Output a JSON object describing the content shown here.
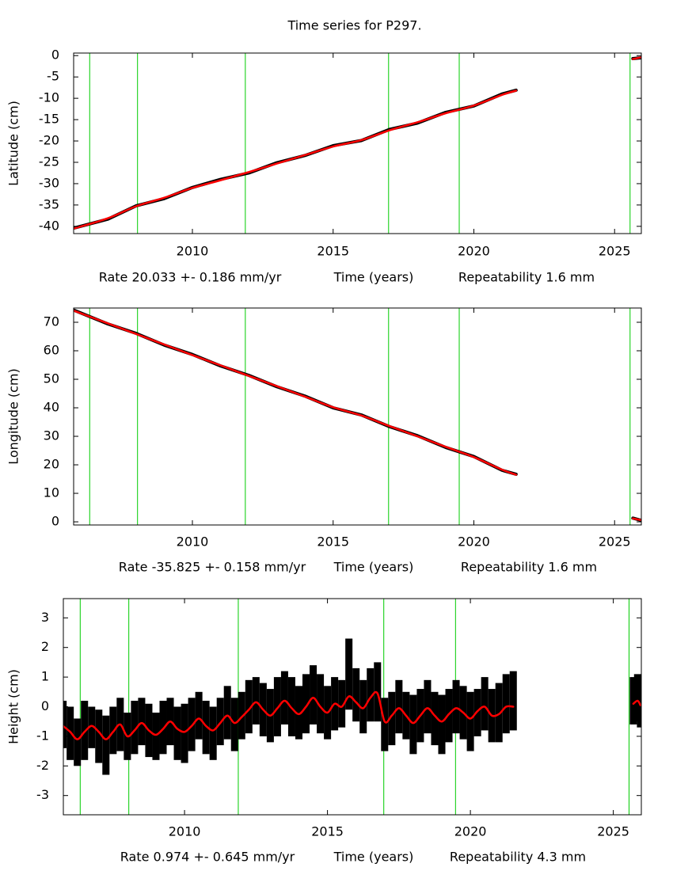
{
  "title": "Time series for P297.",
  "chart_data": [
    {
      "type": "line",
      "ylabel": "Latitude (cm)",
      "xlabel": "Time (years)",
      "rate": "Rate 20.033 +- 0.186 mm/yr",
      "repeatability": "Repeatability 1.6 mm",
      "xlim": [
        2005.78,
        2025.95
      ],
      "xticks": [
        2010,
        2015,
        2020,
        2025
      ],
      "ylim": [
        -41.7,
        0.6
      ],
      "yticks": [
        0,
        -5,
        -10,
        -15,
        -20,
        -25,
        -30,
        -35,
        -40
      ],
      "events": [
        2006.35,
        2008.05,
        2011.88,
        2016.97,
        2019.48,
        2025.55
      ],
      "event_color": "#00cc00",
      "x": [
        2005.8,
        2007,
        2008,
        2009,
        2010,
        2011,
        2012,
        2013,
        2014,
        2015,
        2016,
        2017,
        2018,
        2019,
        2020,
        2021,
        2021.5,
        2023.5,
        2025.65,
        2025.95
      ],
      "series": [
        {
          "color": "#000000",
          "values": [
            -40.4,
            -38.3,
            -35.2,
            -33.5,
            -30.9,
            -29.0,
            -27.5,
            -25.1,
            -23.4,
            -21.1,
            -19.9,
            -17.3,
            -15.8,
            -13.3,
            -11.8,
            -9.0,
            -8.1,
            null,
            -0.7,
            -0.5
          ]
        },
        {
          "color": "#ff0000",
          "values": [
            -40.5,
            -38.1,
            -35.3,
            -33.3,
            -31.0,
            -29.2,
            -27.3,
            -25.3,
            -23.3,
            -21.3,
            -19.8,
            -17.5,
            -15.6,
            -13.5,
            -11.7,
            -9.2,
            -8.2,
            null,
            -0.8,
            -0.4
          ]
        }
      ]
    },
    {
      "type": "line",
      "ylabel": "Longitude (cm)",
      "xlabel": "Time (years)",
      "rate": "Rate -35.825 +- 0.158 mm/yr",
      "repeatability": "Repeatability 1.6 mm",
      "xlim": [
        2005.78,
        2025.95
      ],
      "xticks": [
        2010,
        2015,
        2020,
        2025
      ],
      "ylim": [
        -1.1,
        75
      ],
      "yticks": [
        0,
        10,
        20,
        30,
        40,
        50,
        60,
        70
      ],
      "events": [
        2006.35,
        2008.05,
        2011.88,
        2016.97,
        2019.48,
        2025.55
      ],
      "event_color": "#00cc00",
      "x": [
        2005.8,
        2007,
        2008,
        2009,
        2010,
        2011,
        2012,
        2013,
        2014,
        2015,
        2016,
        2017,
        2018,
        2019,
        2020,
        2021,
        2021.5,
        2023.5,
        2025.65,
        2025.95
      ],
      "series": [
        {
          "color": "#000000",
          "values": [
            74.2,
            69.4,
            66.1,
            62.0,
            58.7,
            54.7,
            51.4,
            47.4,
            44.1,
            40.0,
            37.5,
            33.4,
            30.2,
            26.1,
            22.9,
            18.1,
            16.7,
            null,
            1.3,
            0.5
          ]
        },
        {
          "color": "#ff0000",
          "values": [
            74.0,
            69.6,
            65.9,
            62.2,
            58.5,
            54.9,
            51.2,
            47.6,
            43.9,
            40.2,
            37.3,
            33.6,
            30.0,
            26.3,
            22.7,
            18.3,
            16.5,
            null,
            1.2,
            0.6
          ]
        }
      ]
    },
    {
      "type": "line",
      "ylabel": "Height (cm)",
      "xlabel": "Time (years)",
      "rate": "Rate 0.974 +- 0.645 mm/yr",
      "repeatability": "Repeatability 4.3 mm",
      "xlim": [
        2005.76,
        2025.98
      ],
      "xticks": [
        2010,
        2015,
        2020,
        2025
      ],
      "ylim": [
        -3.65,
        3.65
      ],
      "yticks": [
        -3,
        -2,
        -1,
        0,
        1,
        2,
        3
      ],
      "events": [
        2006.35,
        2008.05,
        2011.88,
        2016.97,
        2019.48,
        2025.55
      ],
      "event_color": "#00cc00",
      "x": [
        2005.75,
        2006,
        2006.25,
        2006.5,
        2006.75,
        2007,
        2007.25,
        2007.5,
        2007.75,
        2008,
        2008.25,
        2008.5,
        2008.75,
        2009,
        2009.25,
        2009.5,
        2009.75,
        2010,
        2010.25,
        2010.5,
        2010.75,
        2011,
        2011.25,
        2011.5,
        2011.75,
        2012,
        2012.25,
        2012.5,
        2012.75,
        2013,
        2013.25,
        2013.5,
        2013.75,
        2014,
        2014.25,
        2014.5,
        2014.75,
        2015,
        2015.25,
        2015.5,
        2015.75,
        2016,
        2016.25,
        2016.5,
        2016.75,
        2017,
        2017.25,
        2017.5,
        2017.75,
        2018,
        2018.25,
        2018.5,
        2018.75,
        2019,
        2019.25,
        2019.5,
        2019.75,
        2020,
        2020.25,
        2020.5,
        2020.75,
        2021,
        2021.25,
        2021.5,
        2023.5,
        2025.7,
        2025.85,
        2025.95
      ],
      "series": [
        {
          "color": "#000000",
          "values": [
            -0.6,
            -0.9,
            -1.2,
            -0.8,
            -0.7,
            -1.0,
            -1.3,
            -0.8,
            -0.6,
            -1.0,
            -0.7,
            -0.5,
            -0.8,
            -1.0,
            -0.7,
            -0.5,
            -0.9,
            -0.9,
            -0.6,
            -0.3,
            -0.7,
            -0.9,
            -0.5,
            -0.2,
            -0.6,
            -0.3,
            0.0,
            0.2,
            -0.1,
            -0.3,
            0.0,
            0.3,
            0.0,
            -0.2,
            0.1,
            0.4,
            0.1,
            -0.2,
            0.1,
            0.1,
            1.1,
            0.4,
            0.0,
            0.4,
            0.5,
            -0.6,
            -0.4,
            0.0,
            -0.3,
            -0.6,
            -0.3,
            0.0,
            -0.4,
            -0.6,
            -0.3,
            0.0,
            -0.2,
            -0.5,
            -0.2,
            0.1,
            -0.3,
            -0.2,
            0.1,
            0.2,
            null,
            0.2,
            0.3,
            0.0
          ],
          "errors": [
            0.8,
            0.9,
            0.8,
            1.0,
            0.7,
            0.9,
            1.0,
            0.8,
            0.9,
            0.8,
            0.9,
            0.8,
            0.9,
            0.8,
            0.9,
            0.8,
            0.9,
            1.0,
            0.9,
            0.8,
            0.9,
            0.9,
            0.8,
            0.9,
            0.9,
            0.8,
            0.9,
            0.8,
            0.9,
            0.9,
            1.0,
            0.9,
            1.0,
            0.9,
            1.0,
            1.0,
            1.0,
            0.9,
            0.9,
            0.8,
            1.2,
            0.9,
            0.9,
            0.9,
            1.0,
            0.9,
            0.9,
            0.9,
            0.8,
            1.0,
            0.9,
            0.9,
            0.9,
            1.0,
            0.9,
            0.9,
            0.9,
            1.0,
            0.8,
            0.9,
            0.9,
            1.0,
            1.0,
            1.0,
            null,
            0.8,
            0.8,
            0.7
          ]
        },
        {
          "color": "#ff0000",
          "values": [
            -0.65,
            -0.85,
            -1.1,
            -0.85,
            -0.65,
            -0.85,
            -1.1,
            -0.85,
            -0.6,
            -1.0,
            -0.8,
            -0.55,
            -0.8,
            -0.95,
            -0.75,
            -0.5,
            -0.75,
            -0.85,
            -0.65,
            -0.4,
            -0.65,
            -0.8,
            -0.55,
            -0.3,
            -0.55,
            -0.35,
            -0.1,
            0.15,
            -0.1,
            -0.3,
            -0.05,
            0.2,
            -0.05,
            -0.25,
            0.0,
            0.3,
            0.0,
            -0.2,
            0.1,
            0.0,
            0.35,
            0.15,
            -0.05,
            0.3,
            0.45,
            -0.5,
            -0.3,
            -0.05,
            -0.3,
            -0.55,
            -0.3,
            -0.05,
            -0.3,
            -0.5,
            -0.25,
            -0.05,
            -0.2,
            -0.4,
            -0.15,
            0.0,
            -0.3,
            -0.25,
            0.0,
            0.0,
            null,
            0.1,
            0.2,
            0.05
          ]
        }
      ]
    }
  ]
}
